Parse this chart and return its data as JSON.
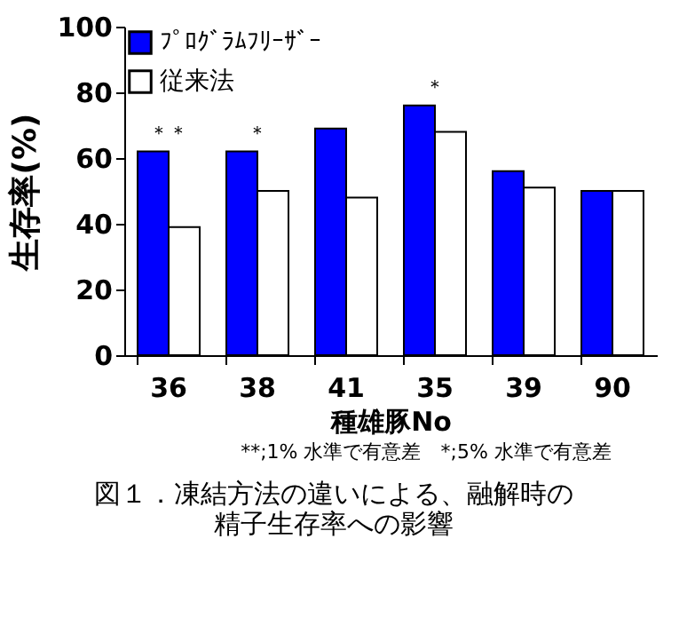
{
  "chart_data": {
    "type": "bar",
    "title": [
      "図１．凍結方法の違いによる、融解時の",
      "精子生存率への影響"
    ],
    "xlabel": "種雄豚No",
    "ylabel": "生存率(%)",
    "categories": [
      "36",
      "38",
      "41",
      "35",
      "39",
      "90"
    ],
    "series": [
      {
        "name": "ﾌﾟﾛｸﾞﾗﾑﾌﾘｰｻﾞｰ",
        "color": "#0000ff",
        "values": [
          62,
          62,
          69,
          76,
          56,
          50
        ]
      },
      {
        "name": "従来法",
        "color": "#ffffff",
        "values": [
          39,
          50,
          48,
          68,
          51,
          50
        ]
      }
    ],
    "ylim": [
      0,
      100
    ],
    "yticks": [
      0,
      20,
      40,
      60,
      80,
      100
    ],
    "grid": false,
    "legend": "top left",
    "annotations": [
      {
        "text": "＊＊",
        "x": "36",
        "y": 62
      },
      {
        "text": "＊",
        "x": "38",
        "y": 62
      },
      {
        "text": "＊",
        "x": "35",
        "y": 76
      },
      "**;1% 水準で有意差　*;5% 水準で有意差"
    ]
  }
}
